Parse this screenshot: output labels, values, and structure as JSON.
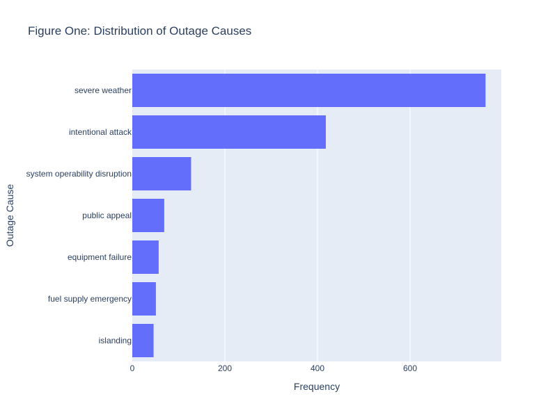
{
  "chart_data": {
    "type": "bar",
    "orientation": "horizontal",
    "title": "Figure One: Distribution of Outage Causes",
    "xlabel": "Frequency",
    "ylabel": "Outage Cause",
    "categories": [
      "severe weather",
      "intentional attack",
      "system operability disruption",
      "public appeal",
      "equipment failure",
      "fuel supply emergency",
      "islanding"
    ],
    "values": [
      763,
      418,
      127,
      69,
      57,
      51,
      46
    ],
    "xlim": [
      0,
      797
    ],
    "xticks": [
      0,
      200,
      400,
      600
    ],
    "grid": true
  },
  "colors": {
    "bar": "#636efa",
    "plot_background": "#e5ecf6",
    "grid": "#ffffff",
    "text": "#2a3f5f"
  }
}
